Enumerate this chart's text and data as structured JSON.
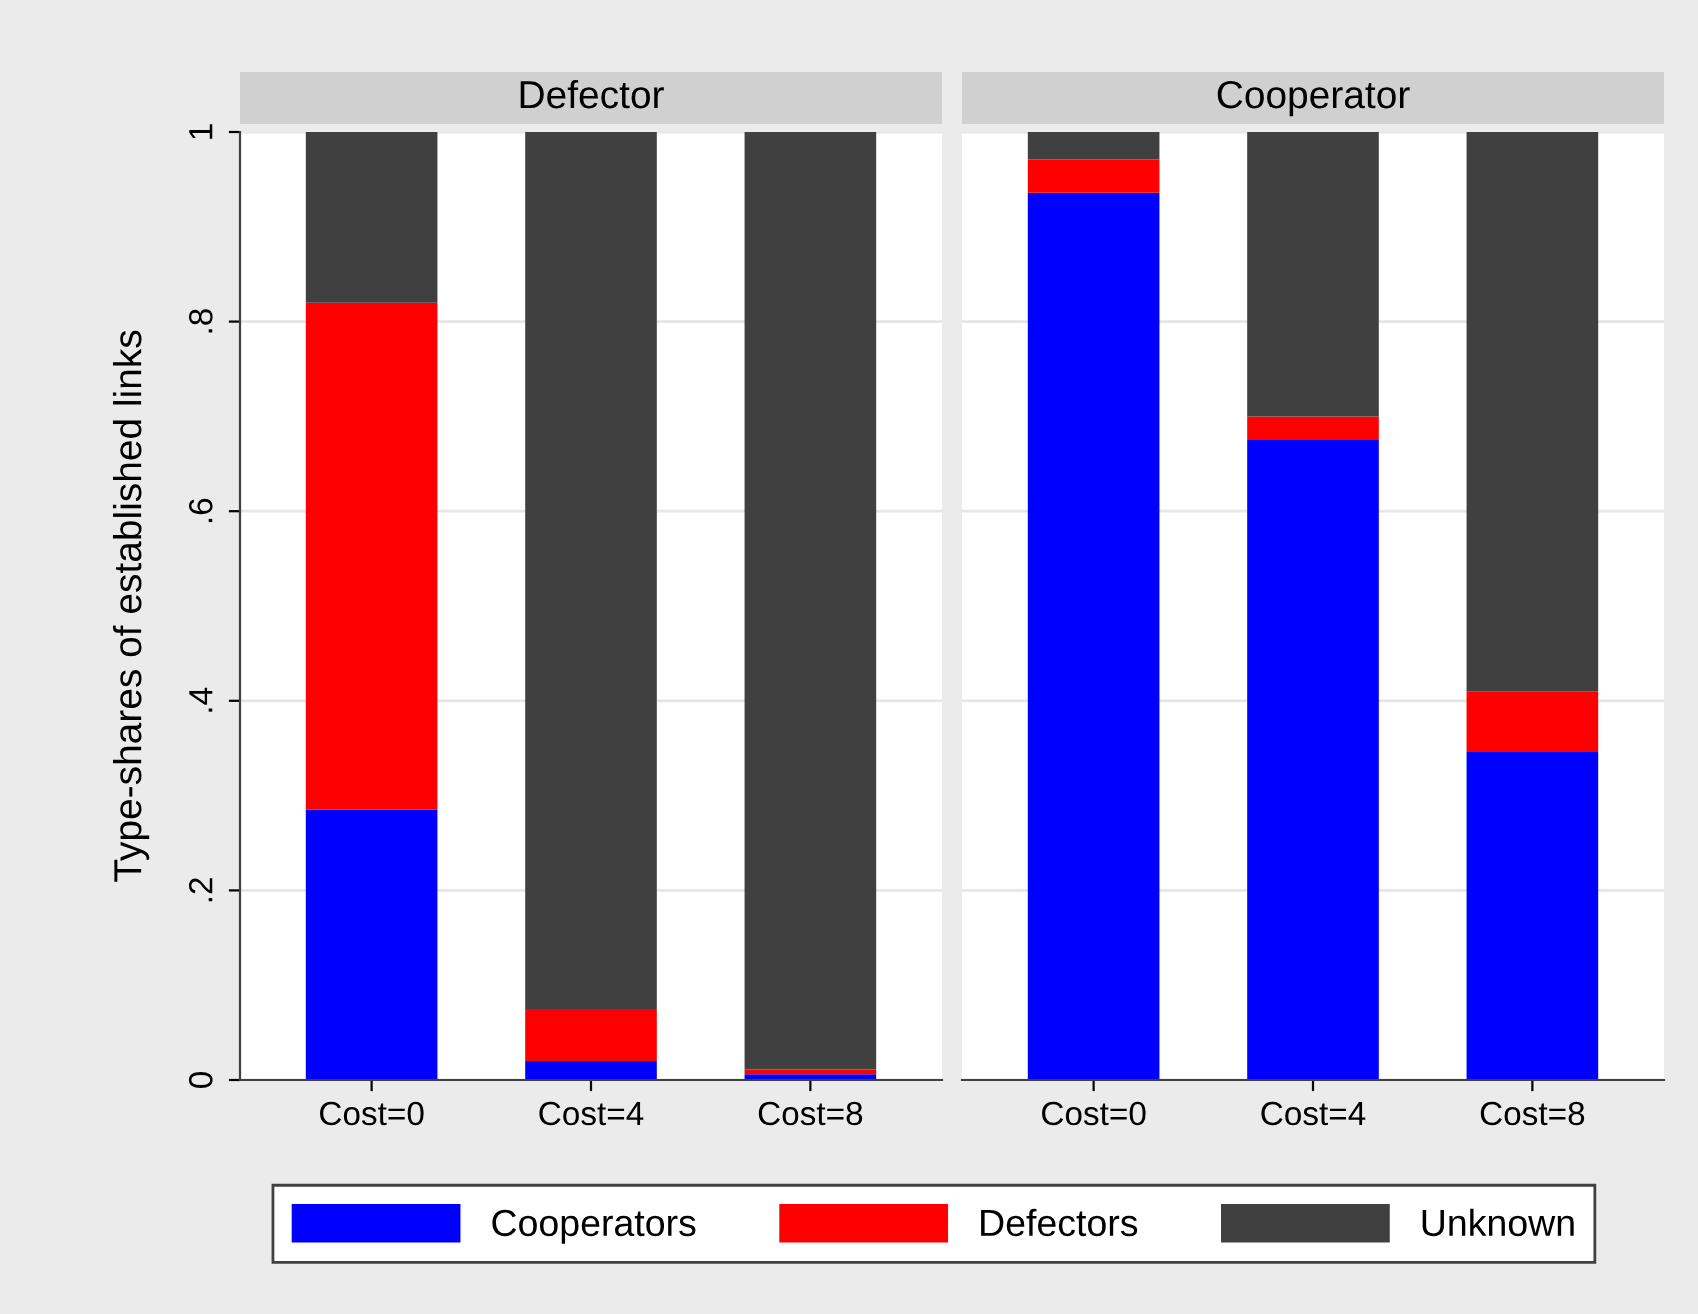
{
  "chart_data": [
    {
      "type": "bar",
      "stacked": true,
      "title": "Defector",
      "ylabel": "Type-shares of established links",
      "categories": [
        "Cost=0",
        "Cost=4",
        "Cost=8"
      ],
      "ylim": [
        0,
        1
      ],
      "yticks": [
        0,
        {
          "value": 0.2,
          "label": ".2"
        },
        {
          "value": 0.4,
          "label": ".4"
        },
        {
          "value": 0.6,
          "label": ".6"
        },
        {
          "value": 0.8,
          "label": ".8"
        },
        1
      ],
      "grid": "y",
      "legend": "bottom",
      "series": [
        {
          "name": "Cooperators",
          "color": "#0000ff",
          "values": [
            0.285,
            0.02,
            0.006
          ]
        },
        {
          "name": "Defectors",
          "color": "#ff0000",
          "values": [
            0.535,
            0.055,
            0.005
          ]
        },
        {
          "name": "Unknown",
          "color": "#404040",
          "values": [
            0.18,
            0.925,
            0.989
          ]
        }
      ]
    },
    {
      "type": "bar",
      "stacked": true,
      "title": "Cooperator",
      "categories": [
        "Cost=0",
        "Cost=4",
        "Cost=8"
      ],
      "ylim": [
        0,
        1
      ],
      "yticks": [
        0,
        0.2,
        0.4,
        0.6,
        0.8,
        1
      ],
      "grid": "y",
      "tick_labels": "x",
      "series": [
        {
          "color": "#0000ff",
          "values": [
            0.936,
            0.675,
            0.346
          ]
        },
        {
          "color": "#ff0000",
          "values": [
            0.035,
            0.025,
            0.064
          ]
        },
        {
          "color": "#404040",
          "values": [
            0.029,
            0.3,
            0.59
          ]
        }
      ]
    }
  ]
}
